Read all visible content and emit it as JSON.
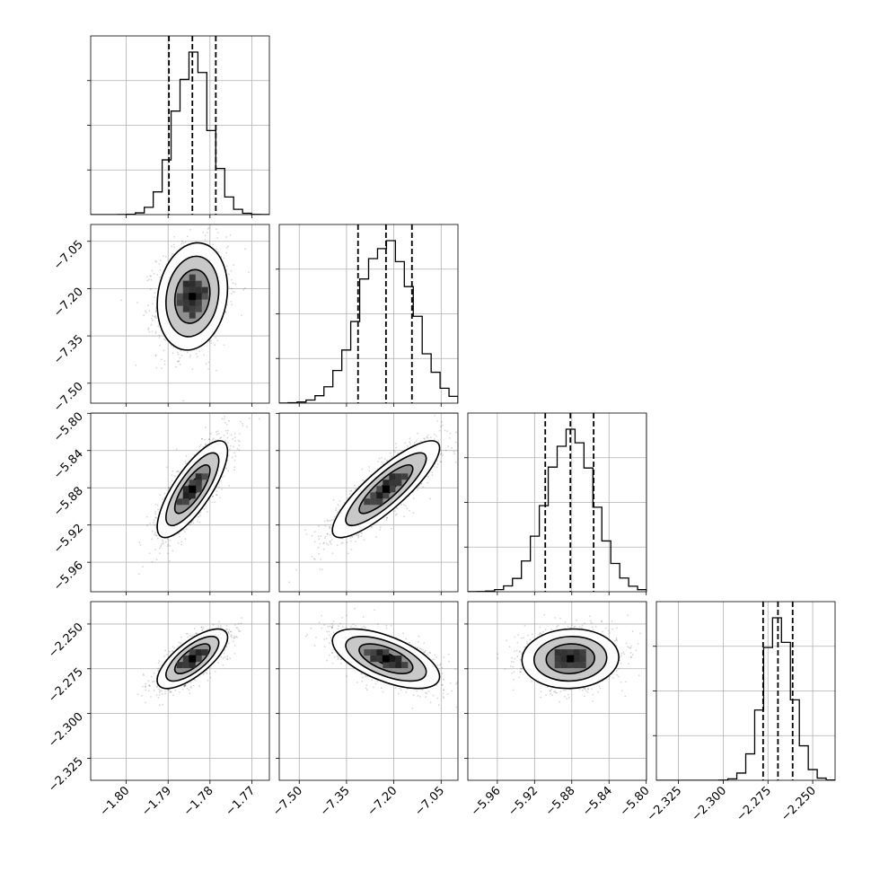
{
  "chart_data": {
    "type": "corner",
    "description_of_params": 4,
    "params": [
      {
        "range": [
          -1.8085,
          -1.7658
        ],
        "ticks": [
          -1.8,
          -1.79,
          -1.78,
          -1.77
        ],
        "tick_labels": [
          "−1.80",
          "−1.79",
          "−1.78",
          "−1.77"
        ],
        "quantiles": [
          -1.7898,
          -1.7842,
          -1.7786
        ],
        "mean": -1.7842,
        "sd": 0.0042
      },
      {
        "range": [
          -7.5633,
          -6.9967
        ],
        "ticks": [
          -7.5,
          -7.35,
          -7.2,
          -7.05
        ],
        "tick_labels": [
          "−7.50",
          "−7.35",
          "−7.20",
          "−7.05"
        ],
        "quantiles": [
          -7.3135,
          -7.2249,
          -7.1426
        ],
        "mean": -7.2249,
        "sd": 0.085
      },
      {
        "range": [
          -5.9917,
          -5.7997
        ],
        "ticks": [
          -5.96,
          -5.92,
          -5.88,
          -5.84,
          -5.8
        ],
        "tick_labels": [
          "−5.96",
          "−5.92",
          "−5.88",
          "−5.84",
          "−5.80"
        ],
        "quantiles": [
          -5.9085,
          -5.8815,
          -5.8565
        ],
        "mean": -5.8815,
        "sd": 0.026
      },
      {
        "range": [
          -2.3373,
          -2.2375
        ],
        "ticks": [
          -2.325,
          -2.3,
          -2.275,
          -2.25
        ],
        "tick_labels": [
          "−2.325",
          "−2.300",
          "−2.275",
          "−2.250"
        ],
        "quantiles": [
          -2.2777,
          -2.2694,
          -2.2612
        ],
        "mean": -2.2694,
        "sd": 0.0083
      }
    ],
    "correlations": {
      "1-0": 0.15,
      "2-0": 0.78,
      "2-1": 0.85,
      "3-0": 0.72,
      "3-1": -0.6,
      "3-2": 0.05
    },
    "contour_levels_sigma": [
      0.5,
      1.0,
      1.5,
      2.0
    ],
    "grid": true
  }
}
